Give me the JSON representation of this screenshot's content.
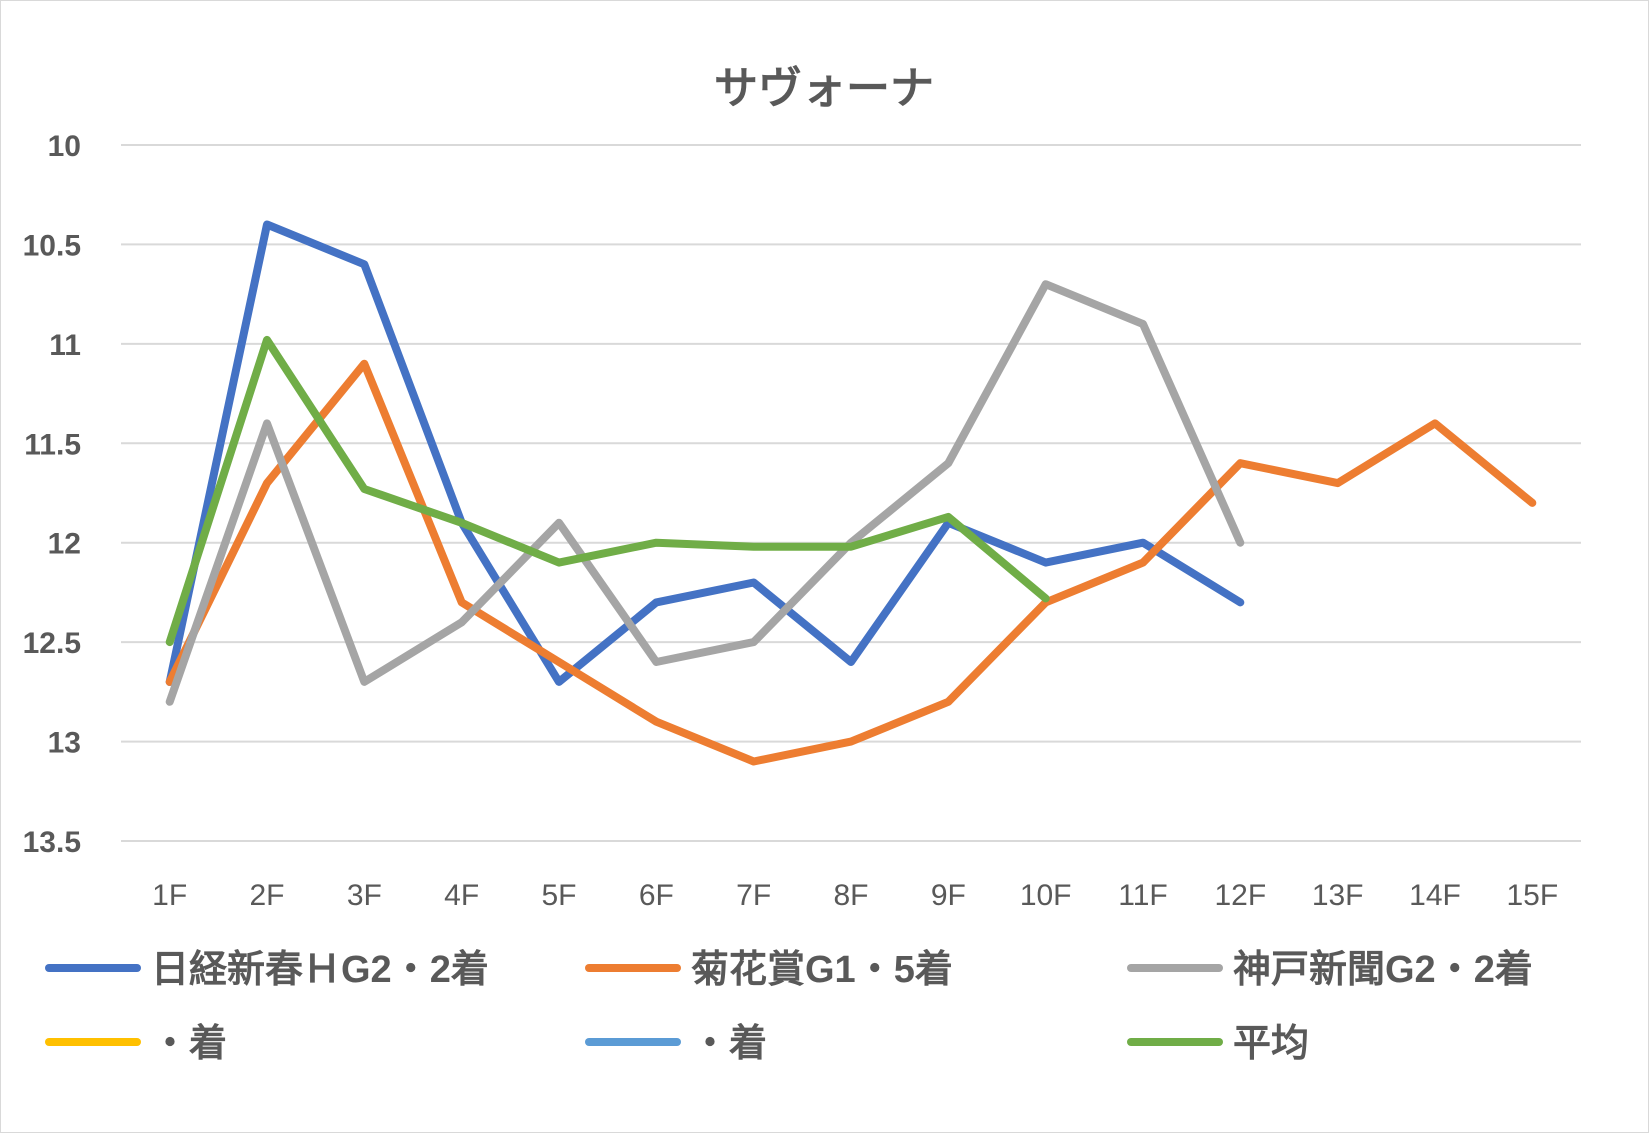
{
  "chart_data": {
    "type": "line",
    "title": "サヴォーナ",
    "xlabel": "",
    "ylabel": "",
    "categories": [
      "1F",
      "2F",
      "3F",
      "4F",
      "5F",
      "6F",
      "7F",
      "8F",
      "9F",
      "10F",
      "11F",
      "12F",
      "13F",
      "14F",
      "15F"
    ],
    "y_axis": {
      "reversed": true,
      "min": 10,
      "max": 13.5,
      "ticks": [
        10,
        10.5,
        11,
        11.5,
        12,
        12.5,
        13,
        13.5
      ],
      "tick_labels": [
        "10",
        "10.5",
        "11",
        "11.5",
        "12",
        "12.5",
        "13",
        "13.5"
      ]
    },
    "grid": true,
    "legend_position": "bottom",
    "series": [
      {
        "name": "日経新春ＨG2・2着",
        "color": "#4472C4",
        "values": [
          12.7,
          10.4,
          10.6,
          11.9,
          12.7,
          12.3,
          12.2,
          12.6,
          11.9,
          12.1,
          12.0,
          12.3,
          null,
          null,
          null
        ]
      },
      {
        "name": "菊花賞G1・5着",
        "color": "#ED7D31",
        "values": [
          12.7,
          11.7,
          11.1,
          12.3,
          12.6,
          12.9,
          13.1,
          13.0,
          12.8,
          12.3,
          12.1,
          11.6,
          11.7,
          11.4,
          11.8
        ]
      },
      {
        "name": "神戸新聞G2・2着",
        "color": "#A5A5A5",
        "values": [
          12.8,
          11.4,
          12.7,
          12.4,
          11.9,
          12.6,
          12.5,
          12.0,
          11.6,
          10.7,
          10.9,
          12.0,
          null,
          null,
          null
        ]
      },
      {
        "name": "・着",
        "color": "#FFC000",
        "values": [
          null,
          null,
          null,
          null,
          null,
          null,
          null,
          null,
          null,
          null,
          null,
          null,
          null,
          null,
          null
        ]
      },
      {
        "name": "・着",
        "color": "#5B9BD5",
        "values": [
          null,
          null,
          null,
          null,
          null,
          null,
          null,
          null,
          null,
          null,
          null,
          null,
          null,
          null,
          null
        ]
      },
      {
        "name": "平均",
        "color": "#70AD47",
        "values": [
          12.5,
          10.98,
          11.73,
          11.9,
          12.1,
          12.0,
          12.02,
          12.02,
          11.87,
          12.28,
          null,
          null,
          null,
          null,
          null
        ]
      }
    ]
  }
}
